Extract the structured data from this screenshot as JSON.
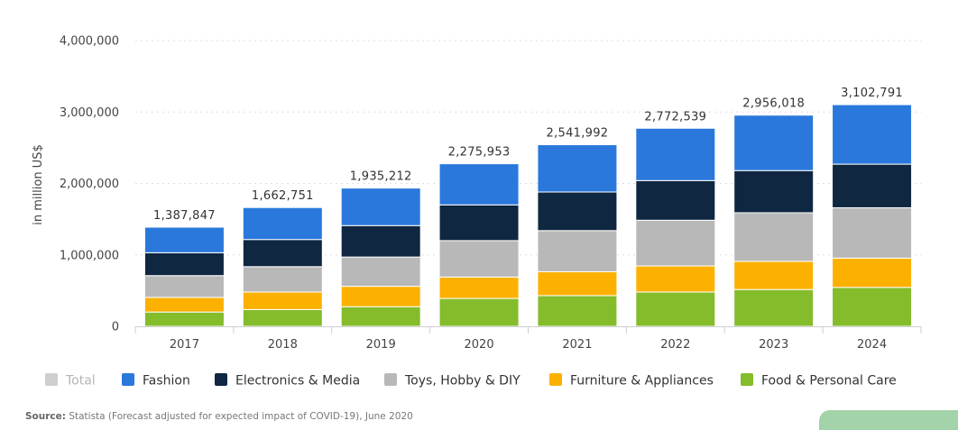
{
  "chart_data": {
    "type": "bar",
    "stacked": true,
    "categories": [
      "2017",
      "2018",
      "2019",
      "2020",
      "2021",
      "2022",
      "2023",
      "2024"
    ],
    "totals": [
      1387847,
      1662751,
      1935212,
      2275953,
      2541992,
      2772539,
      2956018,
      3102791
    ],
    "total_labels": [
      "1,387,847",
      "1,662,751",
      "1,935,212",
      "2,275,953",
      "2,541,992",
      "2,772,539",
      "2,956,018",
      "3,102,791"
    ],
    "series": [
      {
        "name": "Food & Personal Care",
        "color": "#84bc2c",
        "values": [
          200000,
          235000,
          275000,
          390000,
          430000,
          480000,
          515000,
          545000
        ]
      },
      {
        "name": "Furniture & Appliances",
        "color": "#fcb100",
        "values": [
          205000,
          245000,
          285000,
          300000,
          335000,
          365000,
          395000,
          410000
        ]
      },
      {
        "name": "Toys, Hobby & DIY",
        "color": "#b8b8b8",
        "values": [
          305000,
          355000,
          410000,
          510000,
          575000,
          640000,
          680000,
          705000
        ]
      },
      {
        "name": "Electronics & Media",
        "color": "#0f2741",
        "values": [
          320000,
          380000,
          440000,
          500000,
          540000,
          555000,
          590000,
          610000
        ]
      },
      {
        "name": "Fashion",
        "color": "#2a78dc",
        "values": [
          357847,
          447751,
          525212,
          575953,
          661992,
          732539,
          776018,
          832791
        ]
      }
    ],
    "legend": [
      {
        "name": "Total",
        "color": "#cfcfcf",
        "muted": true
      },
      {
        "name": "Fashion",
        "color": "#2a78dc",
        "muted": false
      },
      {
        "name": "Electronics & Media",
        "color": "#0f2741",
        "muted": false
      },
      {
        "name": "Toys, Hobby & DIY",
        "color": "#b8b8b8",
        "muted": false
      },
      {
        "name": "Furniture & Appliances",
        "color": "#fcb100",
        "muted": false
      },
      {
        "name": "Food & Personal Care",
        "color": "#84bc2c",
        "muted": false
      }
    ],
    "ylabel": "in million US$",
    "ylim": [
      0,
      4000000
    ],
    "yticks": [
      0,
      1000000,
      2000000,
      3000000,
      4000000
    ],
    "ytick_labels": [
      "0",
      "1,000,000",
      "2,000,000",
      "3,000,000",
      "4,000,000"
    ],
    "grid": true,
    "legend_position": "bottom"
  },
  "source": {
    "label": "Source:",
    "text": " Statista (Forecast adjusted for expected impact of COVID-19), June 2020"
  }
}
